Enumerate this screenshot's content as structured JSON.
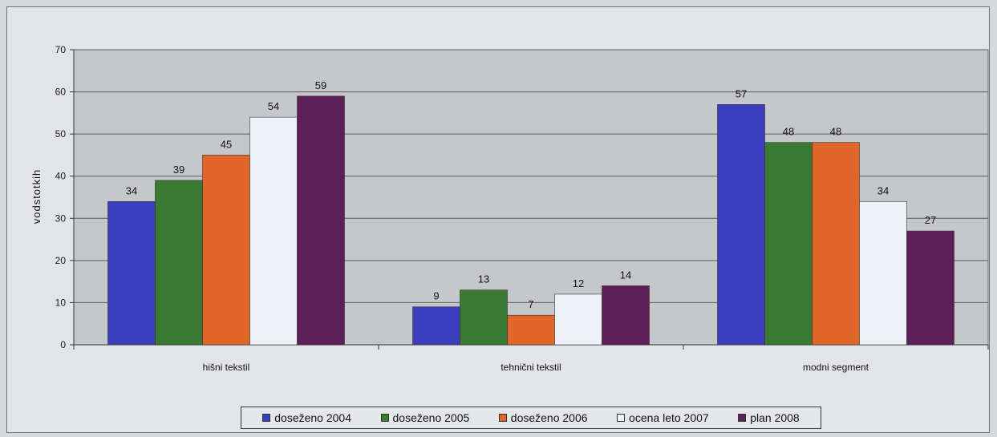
{
  "chart_data": {
    "type": "bar",
    "ylabel": "vodstotkih",
    "ylim": [
      0,
      70
    ],
    "yticks": [
      0,
      10,
      20,
      30,
      40,
      50,
      60,
      70
    ],
    "grid": true,
    "legend_position": "bottom",
    "categories": [
      "hišni tekstil",
      "tehnični tekstil",
      "modni segment"
    ],
    "series": [
      {
        "name": "doseženo 2004",
        "color": "#3b3fbd",
        "values": [
          34,
          9,
          57
        ]
      },
      {
        "name": "doseženo  2005",
        "color": "#3a7a32",
        "values": [
          39,
          13,
          48
        ]
      },
      {
        "name": "doseženo 2006",
        "color": "#e0662a",
        "values": [
          45,
          7,
          48
        ]
      },
      {
        "name": "ocena leto 2007",
        "color": "#eef2f8",
        "values": [
          54,
          12,
          34
        ]
      },
      {
        "name": "plan 2008",
        "color": "#5c1f58",
        "values": [
          59,
          14,
          27
        ]
      }
    ]
  }
}
